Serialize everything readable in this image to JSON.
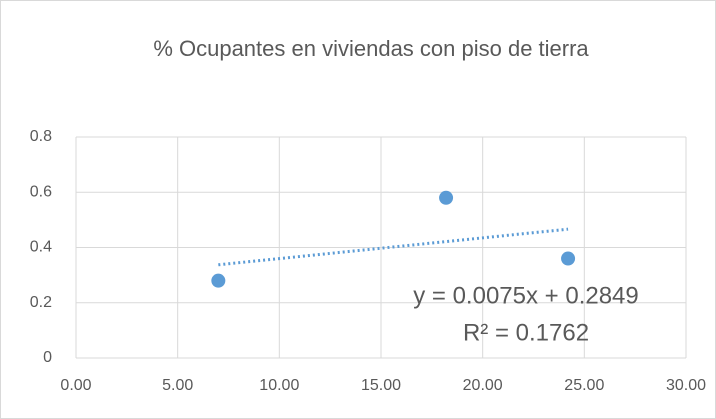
{
  "chart_data": {
    "type": "scatter",
    "title": "% Ocupantes en viviendas con piso de tierra",
    "series": [
      {
        "name": "% Ocupantes en viviendas con piso de tierra",
        "color": "#5b9bd5",
        "x": [
          7.0,
          18.2,
          24.2
        ],
        "values": [
          0.28,
          0.58,
          0.36
        ]
      }
    ],
    "trendline": {
      "slope": 0.0075,
      "intercept": 0.2849,
      "equation": "y = 0.0075x + 0.2849",
      "r2": "R² = 0.1762",
      "style": "dotted"
    },
    "xlim": [
      0,
      30
    ],
    "xticks": [
      {
        "value": 0,
        "label": "0.00"
      },
      {
        "value": 5,
        "label": "5.00"
      },
      {
        "value": 10,
        "label": "10.00"
      },
      {
        "value": 15,
        "label": "15.00"
      },
      {
        "value": 20,
        "label": "20.00"
      },
      {
        "value": 25,
        "label": "25.00"
      },
      {
        "value": 30,
        "label": "30.00"
      }
    ],
    "ylim": [
      0,
      0.8
    ],
    "yticks": [
      0,
      0.2,
      0.4,
      0.6,
      0.8
    ],
    "grid": true
  }
}
